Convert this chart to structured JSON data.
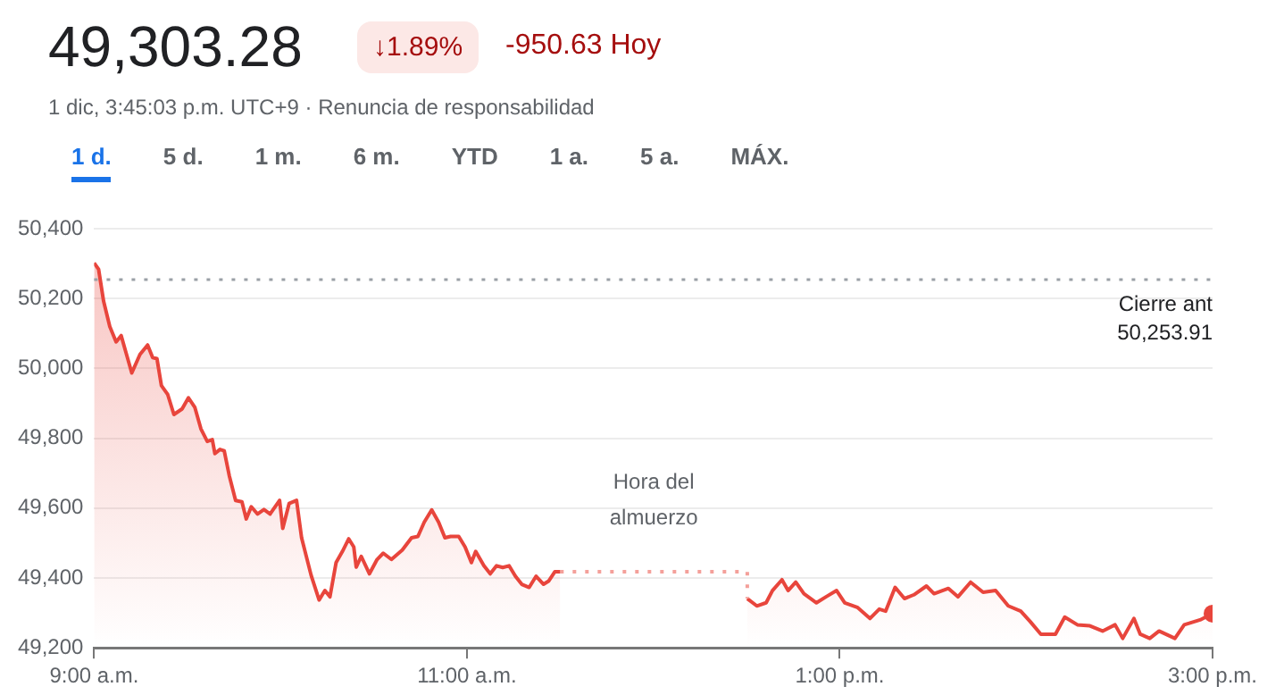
{
  "chart_data": {
    "type": "area",
    "title": "49,303.28",
    "subtitle": "1 dic, 3:45:03 p.m. UTC+9 · Renuncia de responsabilidad",
    "annotations": [
      "↓1.89%",
      "-950.63 Hoy",
      "Hora del almuerzo",
      "1 d.",
      "5 d.",
      "1 m.",
      "6 m.",
      "YTD",
      "1 a.",
      "5 a.",
      "MÁX."
    ],
    "xlim": [
      9,
      15
    ],
    "xticks": [
      {
        "value": 9,
        "label": "9:00 a.m."
      },
      {
        "value": 11,
        "label": "11:00 a.m."
      },
      {
        "value": 13,
        "label": "1:00 p.m."
      },
      {
        "value": 15,
        "label": "3:00 p.m."
      }
    ],
    "ylim": [
      49200,
      50400
    ],
    "yticks": [
      {
        "value": 49200,
        "label": "49,200"
      },
      {
        "value": 49400,
        "label": "49,400"
      },
      {
        "value": 49600,
        "label": "49,600"
      },
      {
        "value": 49800,
        "label": "49,800"
      },
      {
        "value": 50000,
        "label": "50,000"
      },
      {
        "value": 50200,
        "label": "50,200"
      },
      {
        "value": 50400,
        "label": "50,400"
      }
    ],
    "grid": "y",
    "legend": false,
    "marker": "none",
    "ref_lines": [
      {
        "axis": "y",
        "value": 50253.91,
        "label": "Cierre ant 50,253.91",
        "color": "#9aa0a6",
        "line_style": "dotted"
      }
    ],
    "series": [
      {
        "color": "#e8453c",
        "x": [
          9.0,
          9.024,
          9.051,
          9.084,
          9.118,
          9.145,
          9.169,
          9.202,
          9.246,
          9.287,
          9.314,
          9.337,
          9.361,
          9.395,
          9.428,
          9.472,
          9.506,
          9.54,
          9.573,
          9.607,
          9.634,
          9.648,
          9.675,
          9.698,
          9.725,
          9.759,
          9.793,
          9.816,
          9.843,
          9.877,
          9.911,
          9.944,
          9.995,
          10.012,
          10.046,
          10.086,
          10.113,
          10.164,
          10.207,
          10.238,
          10.265,
          10.298,
          10.332,
          10.366,
          10.393,
          10.406,
          10.433,
          10.477,
          10.518,
          10.551,
          10.595,
          10.653,
          10.703,
          10.737,
          10.771,
          10.811,
          10.848,
          10.882,
          10.912,
          10.956,
          10.99,
          11.024,
          11.047,
          11.091,
          11.125,
          11.159,
          11.192,
          11.226,
          11.26,
          11.294,
          11.334,
          11.371,
          11.411,
          11.438,
          11.472,
          11.5
        ],
        "values": [
          50302,
          50284,
          50192,
          50120,
          50076,
          50094,
          50049,
          49987,
          50040,
          50067,
          50031,
          50028,
          49951,
          49925,
          49868,
          49884,
          49916,
          49889,
          49827,
          49791,
          49796,
          49756,
          49768,
          49764,
          49693,
          49622,
          49618,
          49569,
          49604,
          49583,
          49596,
          49583,
          49622,
          49542,
          49613,
          49622,
          49515,
          49408,
          49337,
          49364,
          49346,
          49444,
          49476,
          49512,
          49489,
          49431,
          49462,
          49412,
          49453,
          49471,
          49453,
          49480,
          49515,
          49519,
          49560,
          49595,
          49560,
          49515,
          49519,
          49519,
          49489,
          49444,
          49476,
          49435,
          49412,
          49435,
          49430,
          49435,
          49405,
          49382,
          49373,
          49405,
          49382,
          49391,
          49418,
          49418
        ]
      },
      {
        "type": "line",
        "color": "#f4a09a",
        "line_style": "dotted",
        "x": [
          11.5,
          12.504,
          12.504
        ],
        "values": [
          49418,
          49418,
          49341
        ]
      },
      {
        "color": "#e8453c",
        "x": [
          12.504,
          12.555,
          12.605,
          12.639,
          12.69,
          12.723,
          12.764,
          12.808,
          12.875,
          12.926,
          12.983,
          13.027,
          13.094,
          13.162,
          13.212,
          13.246,
          13.297,
          13.347,
          13.398,
          13.465,
          13.506,
          13.583,
          13.634,
          13.702,
          13.769,
          13.836,
          13.904,
          13.971,
          14.022,
          14.079,
          14.157,
          14.207,
          14.275,
          14.342,
          14.41,
          14.477,
          14.518,
          14.578,
          14.612,
          14.663,
          14.713,
          14.798,
          14.848,
          14.933,
          15.0
        ],
        "values": [
          49341,
          49320,
          49329,
          49364,
          49395,
          49364,
          49388,
          49355,
          49329,
          49346,
          49364,
          49329,
          49316,
          49284,
          49311,
          49305,
          49373,
          49341,
          49352,
          49377,
          49355,
          49370,
          49346,
          49388,
          49359,
          49364,
          49320,
          49305,
          49275,
          49239,
          49239,
          49288,
          49266,
          49263,
          49248,
          49266,
          49227,
          49284,
          49239,
          49227,
          49248,
          49227,
          49266,
          49280,
          49298
        ]
      }
    ]
  }
}
